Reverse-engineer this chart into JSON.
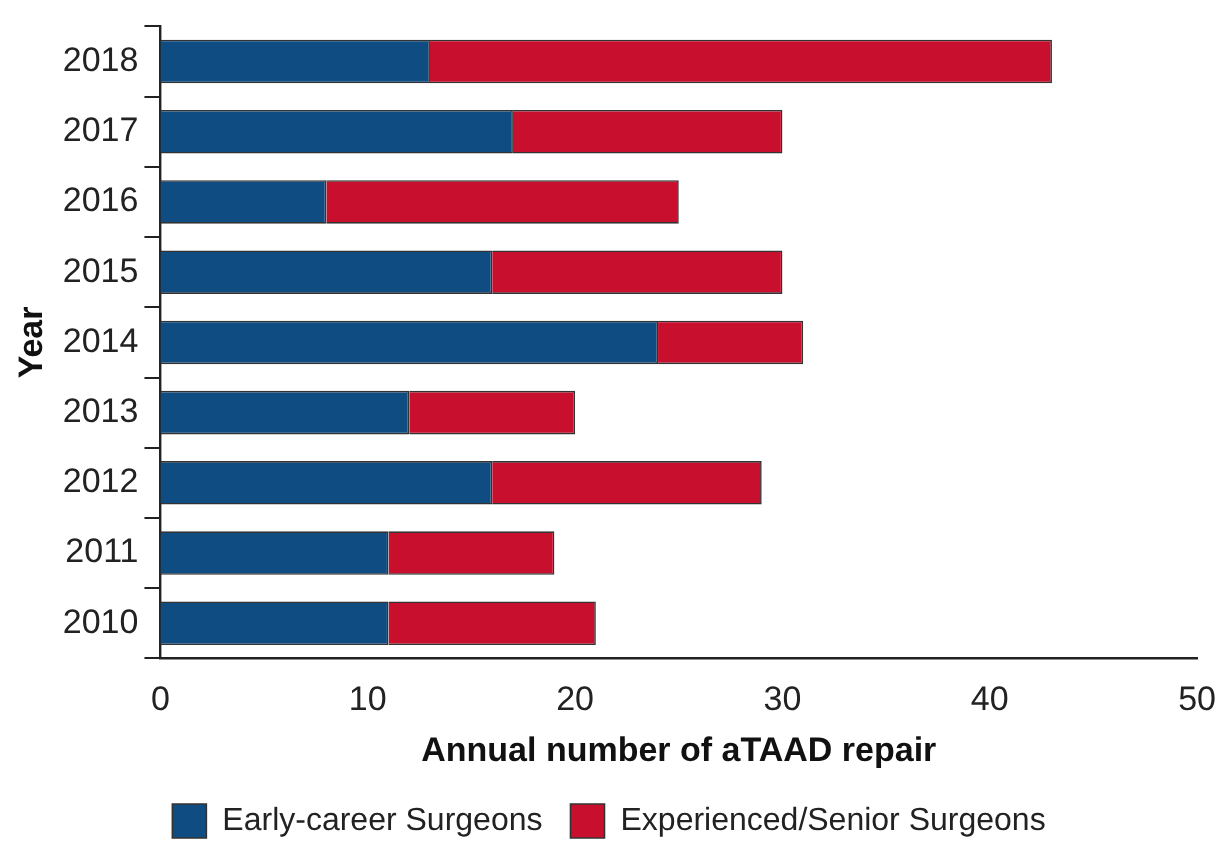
{
  "chart_data": {
    "type": "bar",
    "orientation": "horizontal",
    "stacked": true,
    "xlabel": "Annual number of aTAAD repair",
    "ylabel": "Year",
    "categories": [
      "2018",
      "2017",
      "2016",
      "2015",
      "2014",
      "2013",
      "2012",
      "2011",
      "2010"
    ],
    "series": [
      {
        "name": "Early-career Surgeons",
        "color": "#0f4c81",
        "values": [
          13,
          17,
          8,
          16,
          24,
          12,
          16,
          11,
          11
        ]
      },
      {
        "name": "Experienced/Senior Surgeons",
        "color": "#c8102e",
        "values": [
          30,
          13,
          17,
          14,
          7,
          8,
          13,
          8,
          10
        ]
      }
    ],
    "xlim": [
      0,
      50
    ],
    "xticks": [
      0,
      10,
      20,
      30,
      40,
      50
    ],
    "grid": false,
    "legend": "bottom"
  }
}
